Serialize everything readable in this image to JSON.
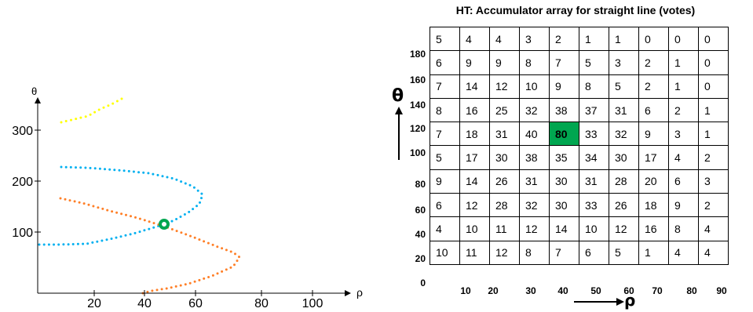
{
  "left_plot": {
    "y_axis_label": "θ",
    "x_axis_label": "ρ",
    "y_ticks": [
      "100",
      "200",
      "300"
    ],
    "x_ticks": [
      "20",
      "40",
      "60",
      "80",
      "100"
    ],
    "colors": {
      "yellow": "#ffff00",
      "blue": "#00b0f0",
      "orange": "#ff7f27",
      "intersection": "#00a650"
    }
  },
  "accumulator": {
    "title": "HT: Accumulator array for straight line (votes)",
    "theta_label": "θ",
    "rho_label": "ρ",
    "theta_ticks": [
      "180",
      "160",
      "140",
      "120",
      "100",
      "80",
      "60",
      "40",
      "20",
      "0"
    ],
    "rho_ticks": [
      "10",
      "20",
      "30",
      "40",
      "50",
      "60",
      "70",
      "80",
      "90"
    ],
    "peak_color": "#00a650",
    "rows": [
      [
        "5",
        "4",
        "4",
        "3",
        "2",
        "1",
        "1",
        "0",
        "0",
        "0"
      ],
      [
        "6",
        "9",
        "9",
        "8",
        "7",
        "5",
        "3",
        "2",
        "1",
        "0"
      ],
      [
        "7",
        "14",
        "12",
        "10",
        "9",
        "8",
        "5",
        "2",
        "1",
        "0"
      ],
      [
        "8",
        "16",
        "25",
        "32",
        "38",
        "37",
        "31",
        "6",
        "2",
        "1"
      ],
      [
        "7",
        "18",
        "31",
        "40",
        "80",
        "33",
        "32",
        "9",
        "3",
        "1"
      ],
      [
        "5",
        "17",
        "30",
        "38",
        "35",
        "34",
        "30",
        "17",
        "4",
        "2"
      ],
      [
        "9",
        "14",
        "26",
        "31",
        "30",
        "31",
        "28",
        "20",
        "6",
        "3"
      ],
      [
        "6",
        "12",
        "28",
        "32",
        "30",
        "33",
        "26",
        "18",
        "9",
        "2"
      ],
      [
        "4",
        "10",
        "11",
        "12",
        "14",
        "10",
        "12",
        "16",
        "8",
        "4"
      ],
      [
        "10",
        "11",
        "12",
        "8",
        "7",
        "6",
        "5",
        "1",
        "4",
        "4"
      ]
    ],
    "peak": {
      "row": 4,
      "col": 4
    }
  }
}
